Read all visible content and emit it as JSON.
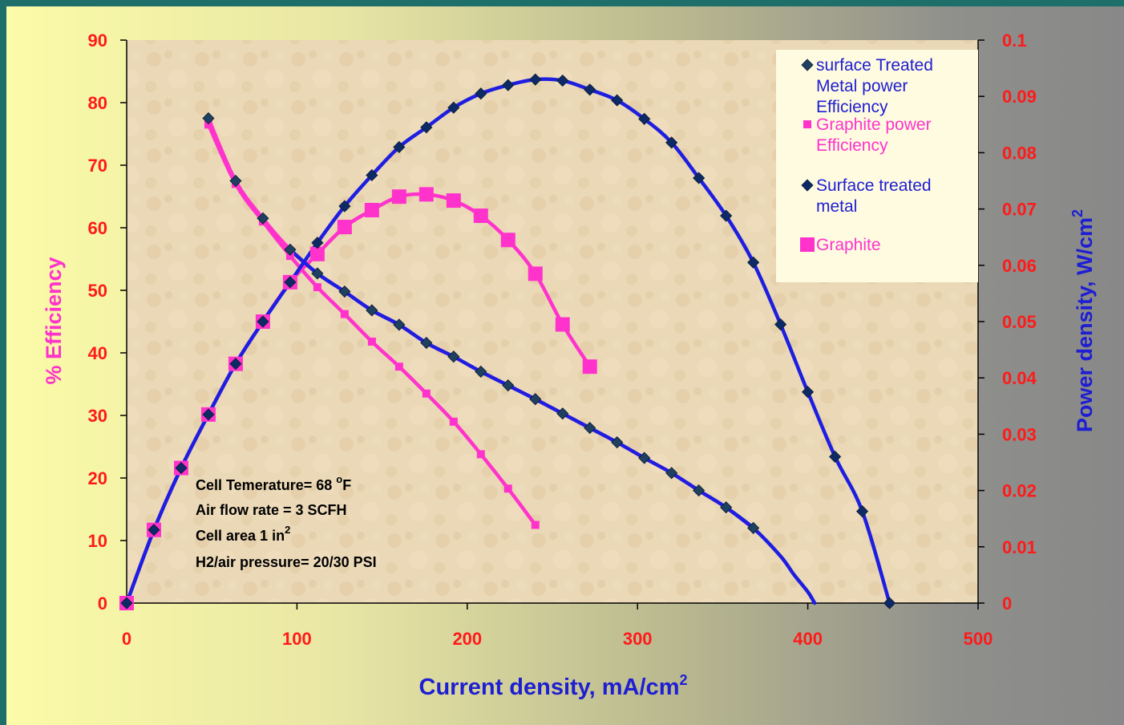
{
  "chart_data": {
    "type": "line",
    "xlabel": "Current density, mA/cm",
    "xlabel_sup": "2",
    "ylabel_left": "% Efficiency",
    "ylabel_right": "Power density, W/cm",
    "ylabel_right_sup": "2",
    "xlim": [
      0,
      500
    ],
    "ylim_left": [
      0,
      90
    ],
    "ylim_right": [
      0,
      0.1
    ],
    "x_ticks": [
      "0",
      "100",
      "200",
      "300",
      "400",
      "500"
    ],
    "y_left_ticks": [
      "0",
      "10",
      "20",
      "30",
      "40",
      "50",
      "60",
      "70",
      "80",
      "90"
    ],
    "y_right_ticks": [
      "0",
      "0.01",
      "0.02",
      "0.03",
      "0.04",
      "0.05",
      "0.06",
      "0.07",
      "0.08",
      "0.09",
      "0.1"
    ],
    "legend_position": "top-right",
    "series": [
      {
        "name": "surface Treated Metal power Efficiency",
        "name_lines": [
          "surface Treated",
          "Metal power",
          "Efficiency"
        ],
        "axis": "left",
        "marker": "diamond",
        "marker_color": "#1f4060",
        "line_color": "#ff33cc",
        "x": [
          48,
          64,
          80,
          96,
          112,
          128,
          144,
          160,
          176,
          192,
          208,
          224,
          240,
          256,
          272,
          288,
          304,
          320,
          336,
          352,
          368
        ],
        "y": [
          77.5,
          67.5,
          61.5,
          56.5,
          52.7,
          49.8,
          46.8,
          44.5,
          41.6,
          39.4,
          37.0,
          34.8,
          32.6,
          30.3,
          28.0,
          25.7,
          23.2,
          20.8,
          18.0,
          15.3,
          12.0
        ]
      },
      {
        "name": "Graphite power Efficiency",
        "name_lines": [
          "Graphite power",
          "Efficiency"
        ],
        "axis": "left",
        "marker": "square-small",
        "marker_color": "#ff33cc",
        "line_color": "#ff33cc",
        "x": [
          48,
          64,
          80,
          96,
          112,
          128,
          144,
          160,
          176,
          192,
          208,
          224,
          240
        ],
        "y": [
          76.5,
          67.0,
          61.0,
          55.5,
          50.5,
          46.2,
          41.8,
          37.8,
          33.5,
          29.0,
          23.8,
          18.3,
          12.5
        ]
      },
      {
        "name": "Surface treated metal",
        "name_lines": [
          "Surface treated",
          "metal"
        ],
        "axis": "right",
        "marker": "diamond",
        "marker_color": "#0d2a66",
        "line_color": "#1e1ee0",
        "x": [
          0,
          16,
          32,
          48,
          64,
          80,
          96,
          112,
          128,
          144,
          160,
          176,
          192,
          208,
          224,
          240,
          256,
          272,
          288,
          304,
          320,
          336,
          352,
          368,
          384,
          400,
          416,
          432,
          448
        ],
        "y": [
          0,
          0.013,
          0.024,
          0.0335,
          0.0425,
          0.05,
          0.057,
          0.064,
          0.0705,
          0.076,
          0.081,
          0.0845,
          0.088,
          0.0905,
          0.092,
          0.093,
          0.0928,
          0.0912,
          0.0893,
          0.086,
          0.0818,
          0.0755,
          0.0688,
          0.0605,
          0.0495,
          0.0375,
          0.026,
          0.0163,
          0
        ]
      },
      {
        "name": "Graphite",
        "name_lines": [
          "Graphite"
        ],
        "axis": "right",
        "marker": "square",
        "marker_color": "#ff33cc",
        "line_color": "#ff33cc",
        "x": [
          0,
          16,
          32,
          48,
          64,
          80,
          96,
          112,
          128,
          144,
          160,
          176,
          192,
          208,
          224,
          240,
          256,
          272
        ],
        "y": [
          0,
          0.013,
          0.024,
          0.0335,
          0.0425,
          0.05,
          0.057,
          0.062,
          0.0668,
          0.0698,
          0.0722,
          0.0726,
          0.0715,
          0.0688,
          0.0645,
          0.0585,
          0.0495,
          0.042
        ]
      }
    ],
    "extra_curve": {
      "axis": "left",
      "line_color": "#1e1ee0",
      "x": [
        368,
        384,
        392,
        400,
        404
      ],
      "y": [
        12.0,
        7.5,
        4.5,
        1.8,
        0
      ]
    },
    "annotations": {
      "line1": "Cell Temerature= 68 ",
      "line1_sup": "o",
      "line1_end": "F",
      "line2": "Air flow rate = 3 SCFH",
      "line3": "Cell area 1 in",
      "line3_sup": "2",
      "line4": "H2/air pressure= 20/30 PSI"
    }
  }
}
